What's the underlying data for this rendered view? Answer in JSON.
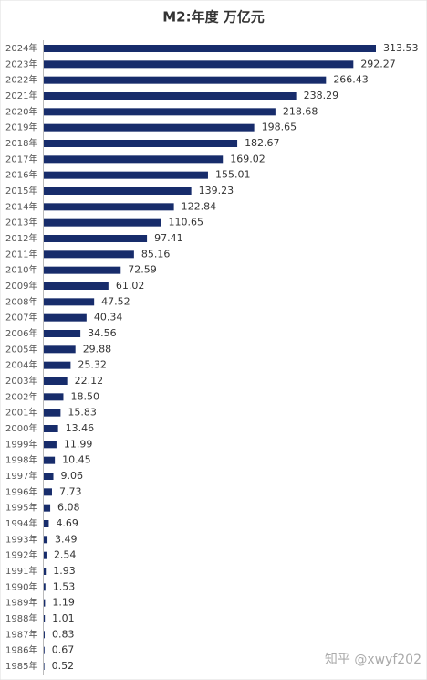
{
  "chart_data": {
    "type": "barh",
    "title": "M2:年度 万亿元",
    "categories": [
      "2024年",
      "2023年",
      "2022年",
      "2021年",
      "2020年",
      "2019年",
      "2018年",
      "2017年",
      "2016年",
      "2015年",
      "2014年",
      "2013年",
      "2012年",
      "2011年",
      "2010年",
      "2009年",
      "2008年",
      "2007年",
      "2006年",
      "2005年",
      "2004年",
      "2003年",
      "2002年",
      "2001年",
      "2000年",
      "1999年",
      "1998年",
      "1997年",
      "1996年",
      "1995年",
      "1994年",
      "1993年",
      "1992年",
      "1991年",
      "1990年",
      "1989年",
      "1988年",
      "1987年",
      "1986年",
      "1985年"
    ],
    "values": [
      313.53,
      292.27,
      266.43,
      238.29,
      218.68,
      198.65,
      182.67,
      169.02,
      155.01,
      139.23,
      122.84,
      110.65,
      97.41,
      85.16,
      72.59,
      61.02,
      47.52,
      40.34,
      34.56,
      29.88,
      25.32,
      22.12,
      18.5,
      15.83,
      13.46,
      11.99,
      10.45,
      9.06,
      7.73,
      6.08,
      4.69,
      3.49,
      2.54,
      1.93,
      1.53,
      1.19,
      1.01,
      0.83,
      0.67,
      0.52
    ],
    "value_labels": [
      "313.53",
      "292.27",
      "266.43",
      "238.29",
      "218.68",
      "198.65",
      "182.67",
      "169.02",
      "155.01",
      "139.23",
      "122.84",
      "110.65",
      "97.41",
      "85.16",
      "72.59",
      "61.02",
      "47.52",
      "40.34",
      "34.56",
      "29.88",
      "25.32",
      "22.12",
      "18.50",
      "15.83",
      "13.46",
      "11.99",
      "10.45",
      "9.06",
      "7.73",
      "6.08",
      "4.69",
      "3.49",
      "2.54",
      "1.93",
      "1.53",
      "1.19",
      "1.01",
      "0.83",
      "0.67",
      "0.52"
    ],
    "color": "#172c6b",
    "watermark": "知乎 @xwyf202"
  }
}
